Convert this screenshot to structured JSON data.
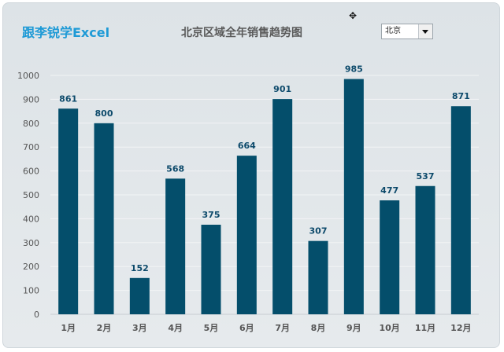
{
  "header": {
    "brand": "跟李锐学Excel",
    "title": "北京区域全年销售趋势图"
  },
  "region_select": {
    "value": "北京"
  },
  "colors": {
    "bar": "#044e6b",
    "brand": "#1e9ad6"
  },
  "icons": {
    "cursor": "move-cursor-icon",
    "dropdown": "chevron-down-icon"
  },
  "chart_data": {
    "type": "bar",
    "title": "北京区域全年销售趋势图",
    "categories": [
      "1月",
      "2月",
      "3月",
      "4月",
      "5月",
      "6月",
      "7月",
      "8月",
      "9月",
      "10月",
      "11月",
      "12月"
    ],
    "values": [
      861,
      800,
      152,
      568,
      375,
      664,
      901,
      307,
      985,
      477,
      537,
      871
    ],
    "ylim": [
      0,
      1000
    ],
    "yticks": [
      "0",
      "100",
      "200",
      "300",
      "400",
      "500",
      "600",
      "700",
      "800",
      "900",
      "1000"
    ],
    "grid": true,
    "legend": "none"
  }
}
